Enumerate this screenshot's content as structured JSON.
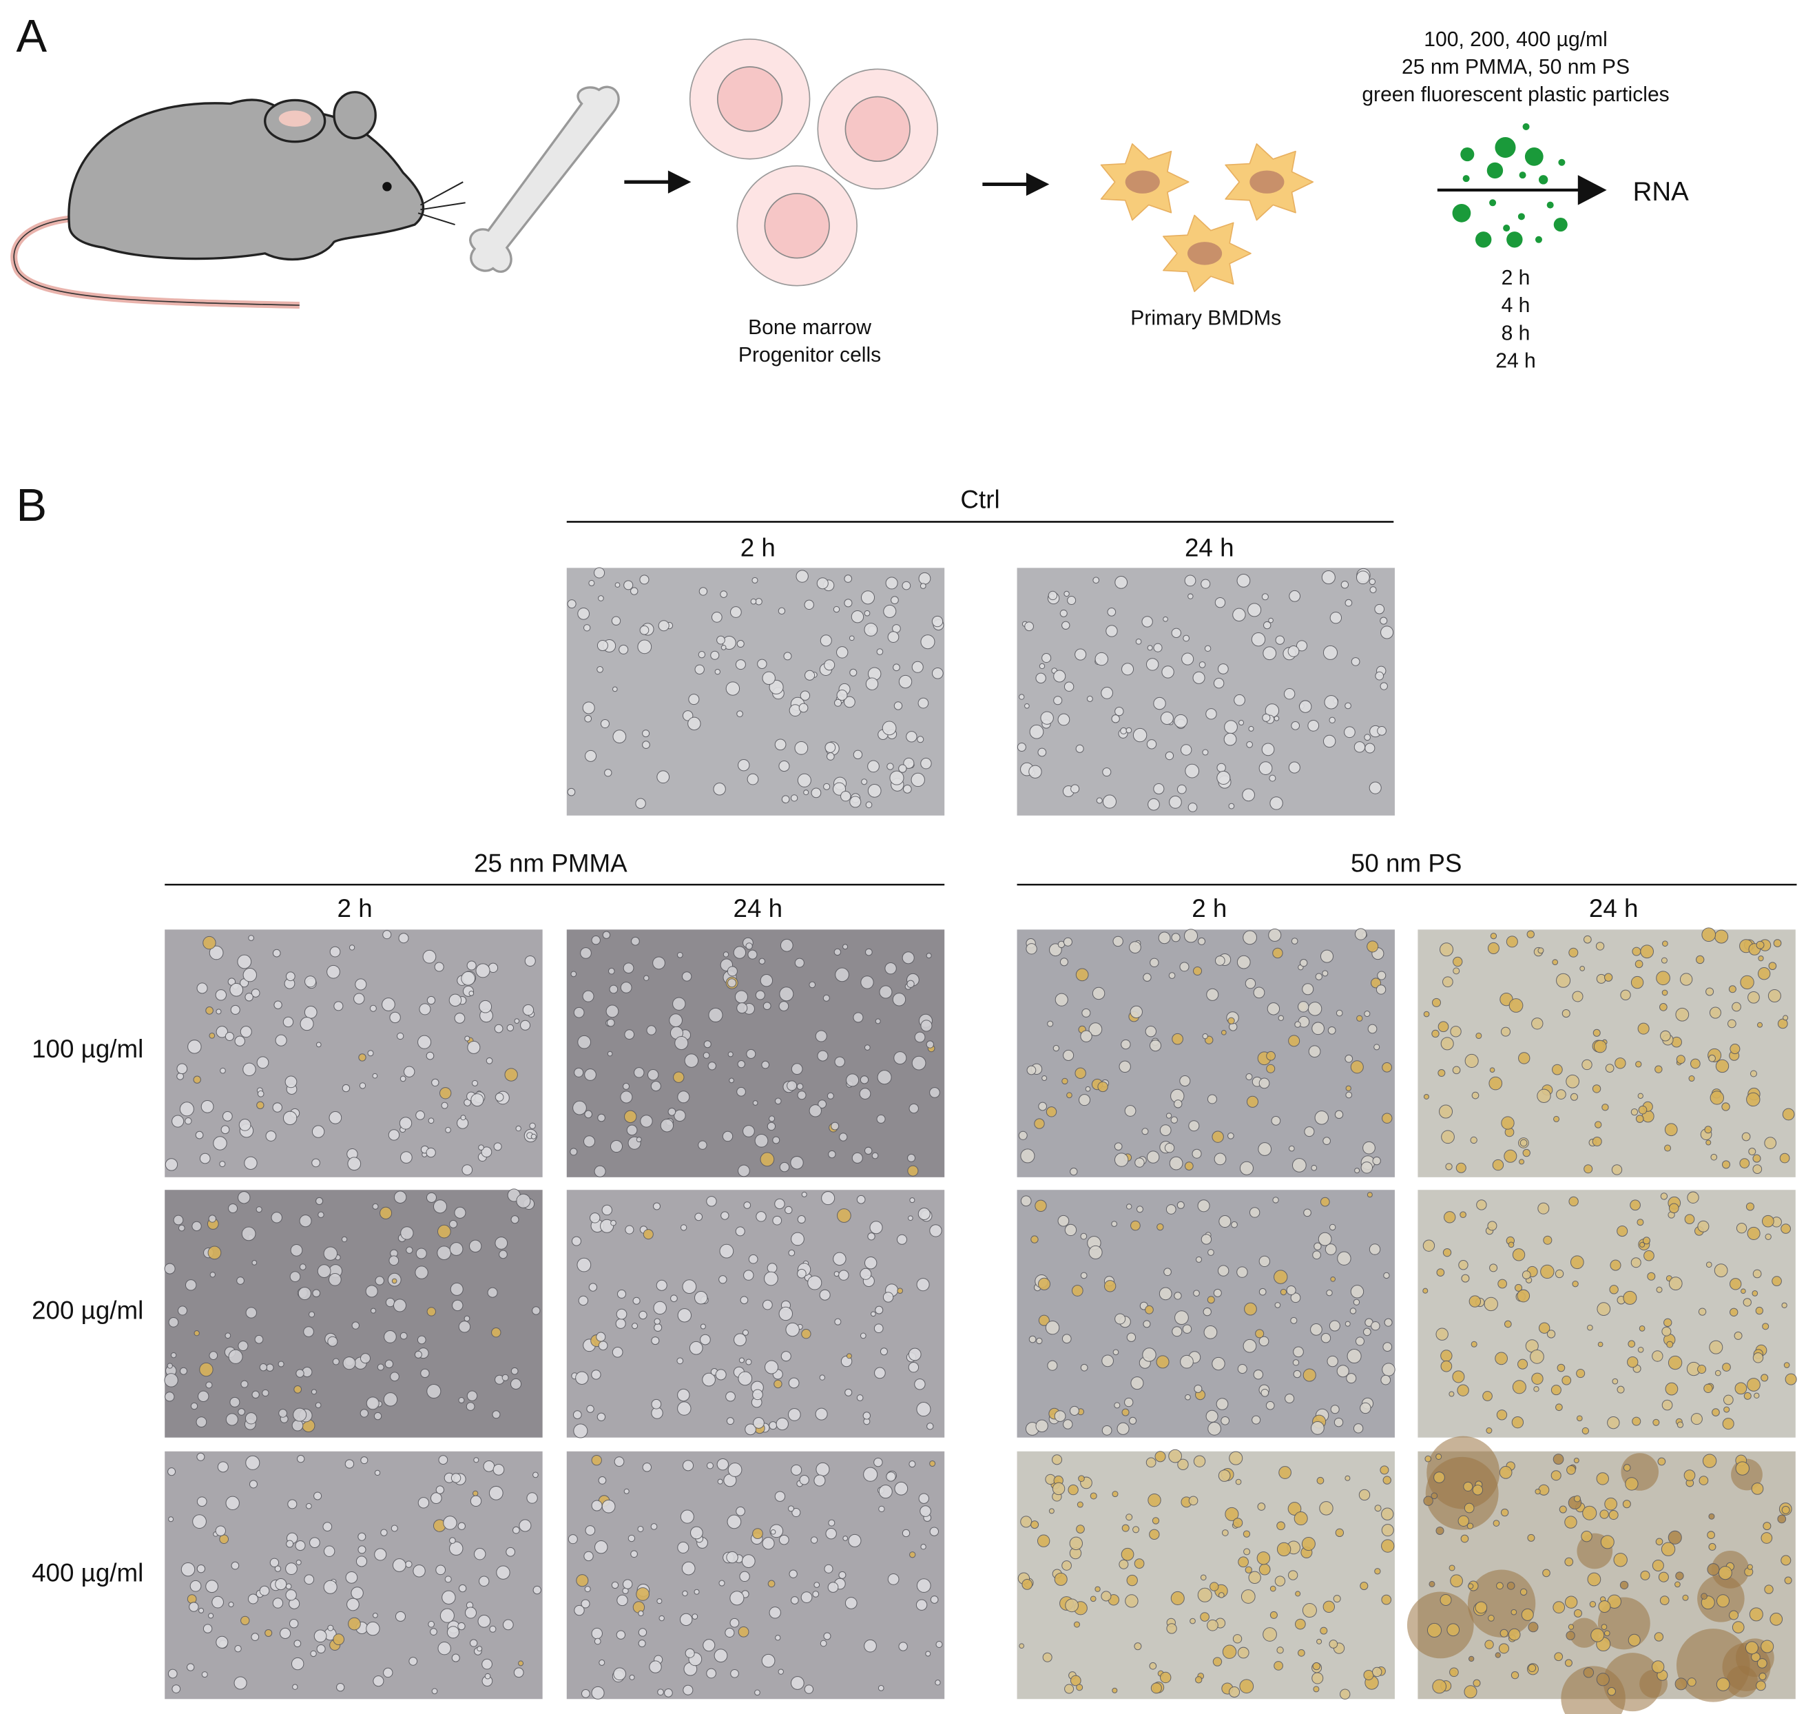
{
  "panel_a": {
    "label": "A",
    "particle_info": [
      "100, 200, 400 µg/ml",
      "25 nm PMMA, 50 nm PS",
      "green fluorescent plastic particles"
    ],
    "output": "RNA",
    "timepoints": [
      "2 h",
      "4 h",
      "8 h",
      "24 h"
    ],
    "progenitor_label": [
      "Bone marrow",
      "Progenitor cells"
    ],
    "bmdm_label": "Primary BMDMs"
  },
  "panel_b": {
    "label": "B",
    "ctrl": {
      "title": "Ctrl",
      "times": [
        "2 h",
        "24 h"
      ]
    },
    "groups": [
      {
        "title": "25 nm PMMA",
        "times": [
          "2 h",
          "24 h"
        ]
      },
      {
        "title": "50 nm PS",
        "times": [
          "2 h",
          "24 h"
        ]
      }
    ],
    "rows": [
      "100 µg/ml",
      "200 µg/ml",
      "400 µg/ml"
    ]
  }
}
